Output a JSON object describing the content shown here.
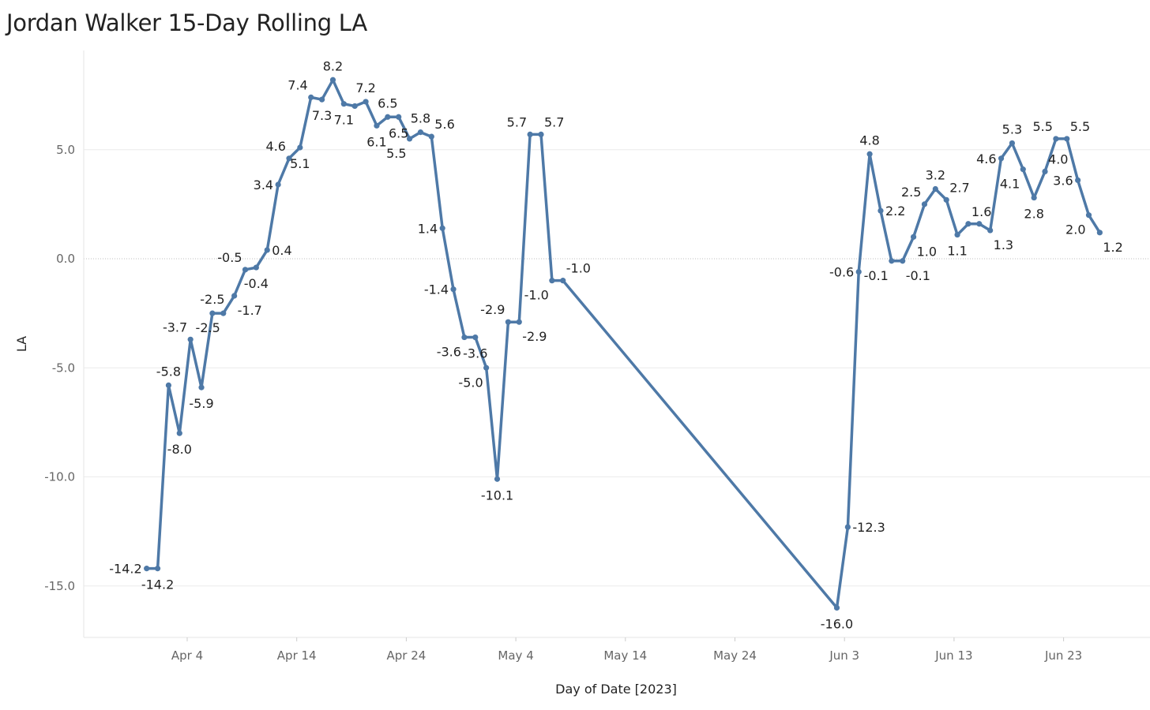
{
  "chart_data": {
    "type": "line",
    "title": "Jordan Walker 15-Day Rolling LA",
    "xlabel": "Day of Date [2023]",
    "ylabel": "LA",
    "ylim": [
      -17.5,
      9.5
    ],
    "y_ticks": [
      5.0,
      0.0,
      -5.0,
      -10.0,
      -15.0
    ],
    "y_tick_labels": [
      "5.0",
      "0.0",
      "-5.0",
      "-10.0",
      "-15.0"
    ],
    "x_ticks": [
      {
        "label": "Apr 4",
        "day": 4
      },
      {
        "label": "Apr 14",
        "day": 14
      },
      {
        "label": "Apr 24",
        "day": 24
      },
      {
        "label": "May 4",
        "day": 34
      },
      {
        "label": "May 14",
        "day": 44
      },
      {
        "label": "May 24",
        "day": 54
      },
      {
        "label": "Jun 3",
        "day": 64
      },
      {
        "label": "Jun 13",
        "day": 74
      },
      {
        "label": "Jun 23",
        "day": 84
      }
    ],
    "x_unit": "days since Mar 31, 2023",
    "series": [
      {
        "name": "15-Day Rolling LA",
        "color": "#4e79a7",
        "points": [
          {
            "x": 0.3,
            "y": -14.2,
            "label": "-14.2",
            "pos": "left"
          },
          {
            "x": 1.3,
            "y": -14.2,
            "label": "-14.2",
            "pos": "below"
          },
          {
            "x": 2.3,
            "y": -5.8,
            "label": "-5.8",
            "pos": "above"
          },
          {
            "x": 3.3,
            "y": -8.0,
            "label": "-8.0",
            "pos": "below"
          },
          {
            "x": 4.3,
            "y": -3.7,
            "label": "-3.7",
            "pos": "above-left"
          },
          {
            "x": 5.3,
            "y": -5.9,
            "label": "-5.9",
            "pos": "below"
          },
          {
            "x": 6.3,
            "y": -2.5,
            "label": "-2.5",
            "pos": "above"
          },
          {
            "x": 7.3,
            "y": -2.5,
            "label": "-2.5",
            "pos": "below-left"
          },
          {
            "x": 8.3,
            "y": -1.7,
            "label": "-1.7",
            "pos": "below-right"
          },
          {
            "x": 9.3,
            "y": -0.5,
            "label": "-0.5",
            "pos": "above-left"
          },
          {
            "x": 10.3,
            "y": -0.4,
            "label": "-0.4",
            "pos": "below"
          },
          {
            "x": 11.3,
            "y": 0.4,
            "label": "0.4",
            "pos": "right"
          },
          {
            "x": 12.3,
            "y": 3.4,
            "label": "3.4",
            "pos": "left"
          },
          {
            "x": 13.3,
            "y": 4.6,
            "label": "4.6",
            "pos": "above-left"
          },
          {
            "x": 14.3,
            "y": 5.1,
            "label": "5.1",
            "pos": "below"
          },
          {
            "x": 15.3,
            "y": 7.4,
            "label": "7.4",
            "pos": "above-left"
          },
          {
            "x": 16.3,
            "y": 7.3,
            "label": "7.3",
            "pos": "below"
          },
          {
            "x": 17.3,
            "y": 8.2,
            "label": "8.2",
            "pos": "above"
          },
          {
            "x": 18.3,
            "y": 7.1,
            "label": "7.1",
            "pos": "below"
          },
          {
            "x": 19.3,
            "y": 7.0,
            "label": "",
            "pos": "none"
          },
          {
            "x": 20.3,
            "y": 7.2,
            "label": "7.2",
            "pos": "above"
          },
          {
            "x": 21.3,
            "y": 6.1,
            "label": "6.1",
            "pos": "below"
          },
          {
            "x": 22.3,
            "y": 6.5,
            "label": "6.5",
            "pos": "above"
          },
          {
            "x": 23.3,
            "y": 6.5,
            "label": "6.5",
            "pos": "below"
          },
          {
            "x": 24.3,
            "y": 5.5,
            "label": "5.5",
            "pos": "below-left"
          },
          {
            "x": 25.3,
            "y": 5.8,
            "label": "5.8",
            "pos": "above"
          },
          {
            "x": 26.3,
            "y": 5.6,
            "label": "5.6",
            "pos": "above-right"
          },
          {
            "x": 27.3,
            "y": 1.4,
            "label": "1.4",
            "pos": "left"
          },
          {
            "x": 28.3,
            "y": -1.4,
            "label": "-1.4",
            "pos": "left"
          },
          {
            "x": 29.3,
            "y": -3.6,
            "label": "-3.6",
            "pos": "below-left"
          },
          {
            "x": 30.3,
            "y": -3.6,
            "label": "-3.6",
            "pos": "below"
          },
          {
            "x": 31.3,
            "y": -5.0,
            "label": "-5.0",
            "pos": "below-left"
          },
          {
            "x": 32.3,
            "y": -10.1,
            "label": "-10.1",
            "pos": "below"
          },
          {
            "x": 33.3,
            "y": -2.9,
            "label": "-2.9",
            "pos": "above-left"
          },
          {
            "x": 34.3,
            "y": -2.9,
            "label": "-2.9",
            "pos": "below-right"
          },
          {
            "x": 35.3,
            "y": 5.7,
            "label": "5.7",
            "pos": "above-left"
          },
          {
            "x": 36.3,
            "y": 5.7,
            "label": "5.7",
            "pos": "above-right"
          },
          {
            "x": 37.3,
            "y": -1.0,
            "label": "-1.0",
            "pos": "below-left"
          },
          {
            "x": 38.3,
            "y": -1.0,
            "label": "-1.0",
            "pos": "above-right"
          },
          {
            "x": 63.3,
            "y": -16.0,
            "label": "-16.0",
            "pos": "below"
          },
          {
            "x": 64.3,
            "y": -12.3,
            "label": "-12.3",
            "pos": "right"
          },
          {
            "x": 65.3,
            "y": -0.6,
            "label": "-0.6",
            "pos": "left"
          },
          {
            "x": 66.3,
            "y": 4.8,
            "label": "4.8",
            "pos": "above"
          },
          {
            "x": 67.3,
            "y": 2.2,
            "label": "2.2",
            "pos": "right"
          },
          {
            "x": 68.3,
            "y": -0.1,
            "label": "-0.1",
            "pos": "below-left"
          },
          {
            "x": 69.3,
            "y": -0.1,
            "label": "-0.1",
            "pos": "below-right"
          },
          {
            "x": 70.3,
            "y": 1.0,
            "label": "1.0",
            "pos": "below-right"
          },
          {
            "x": 71.3,
            "y": 2.5,
            "label": "2.5",
            "pos": "above-left"
          },
          {
            "x": 72.3,
            "y": 3.2,
            "label": "3.2",
            "pos": "above"
          },
          {
            "x": 73.3,
            "y": 2.7,
            "label": "2.7",
            "pos": "above-right"
          },
          {
            "x": 74.3,
            "y": 1.1,
            "label": "1.1",
            "pos": "below"
          },
          {
            "x": 75.3,
            "y": 1.6,
            "label": "1.6",
            "pos": "above-right"
          },
          {
            "x": 76.3,
            "y": 1.6,
            "label": "",
            "pos": "none"
          },
          {
            "x": 77.3,
            "y": 1.3,
            "label": "1.3",
            "pos": "below-right"
          },
          {
            "x": 78.3,
            "y": 4.6,
            "label": "4.6",
            "pos": "left"
          },
          {
            "x": 79.3,
            "y": 5.3,
            "label": "5.3",
            "pos": "above"
          },
          {
            "x": 80.3,
            "y": 4.1,
            "label": "4.1",
            "pos": "below-left"
          },
          {
            "x": 81.3,
            "y": 2.8,
            "label": "2.8",
            "pos": "below"
          },
          {
            "x": 82.3,
            "y": 4.0,
            "label": "4.0",
            "pos": "above-right"
          },
          {
            "x": 83.3,
            "y": 5.5,
            "label": "5.5",
            "pos": "above-left"
          },
          {
            "x": 84.3,
            "y": 5.5,
            "label": "5.5",
            "pos": "above-right"
          },
          {
            "x": 85.3,
            "y": 3.6,
            "label": "3.6",
            "pos": "left"
          },
          {
            "x": 86.3,
            "y": 2.0,
            "label": "2.0",
            "pos": "below-left"
          },
          {
            "x": 87.3,
            "y": 1.2,
            "label": "1.2",
            "pos": "below-right"
          }
        ]
      }
    ],
    "grid": true,
    "zero_line": "dotted",
    "legend": "none"
  }
}
